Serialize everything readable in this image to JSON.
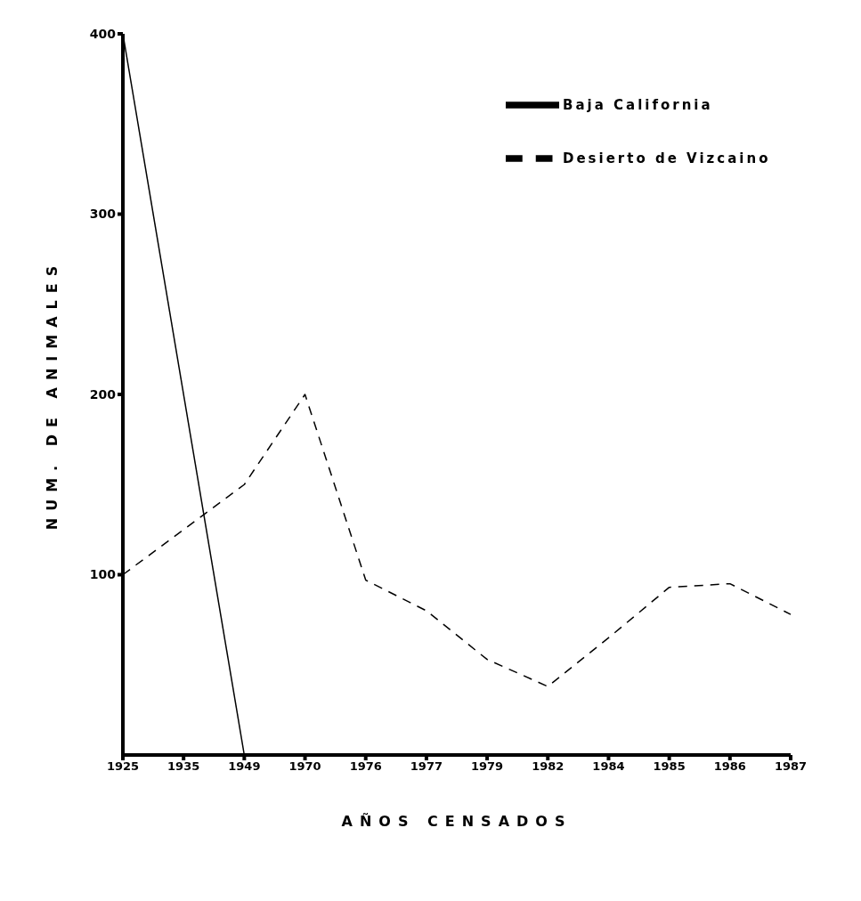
{
  "chart_data": {
    "type": "line",
    "xlabel": "AÑOS CENSADOS",
    "ylabel": "NUM. DE ANIMALES",
    "categories": [
      "1925",
      "1935",
      "1949",
      "1970",
      "1976",
      "1977",
      "1979",
      "1982",
      "1984",
      "1985",
      "1986",
      "1987"
    ],
    "ylim": [
      0,
      400
    ],
    "yticks": [
      100,
      200,
      300,
      400
    ],
    "grid": false,
    "legend": "top right",
    "marker": "none",
    "series": [
      {
        "name": "Baja California",
        "color": "#000000",
        "line_style": "solid",
        "values": [
          400,
          null,
          0,
          null,
          null,
          null,
          null,
          null,
          null,
          null,
          null,
          null
        ]
      },
      {
        "name": "Desierto de Vizcaino",
        "color": "#000000",
        "line_style": "dashed",
        "values": [
          100,
          125,
          150,
          200,
          97,
          80,
          53,
          38,
          65,
          93,
          95,
          78
        ]
      }
    ]
  }
}
